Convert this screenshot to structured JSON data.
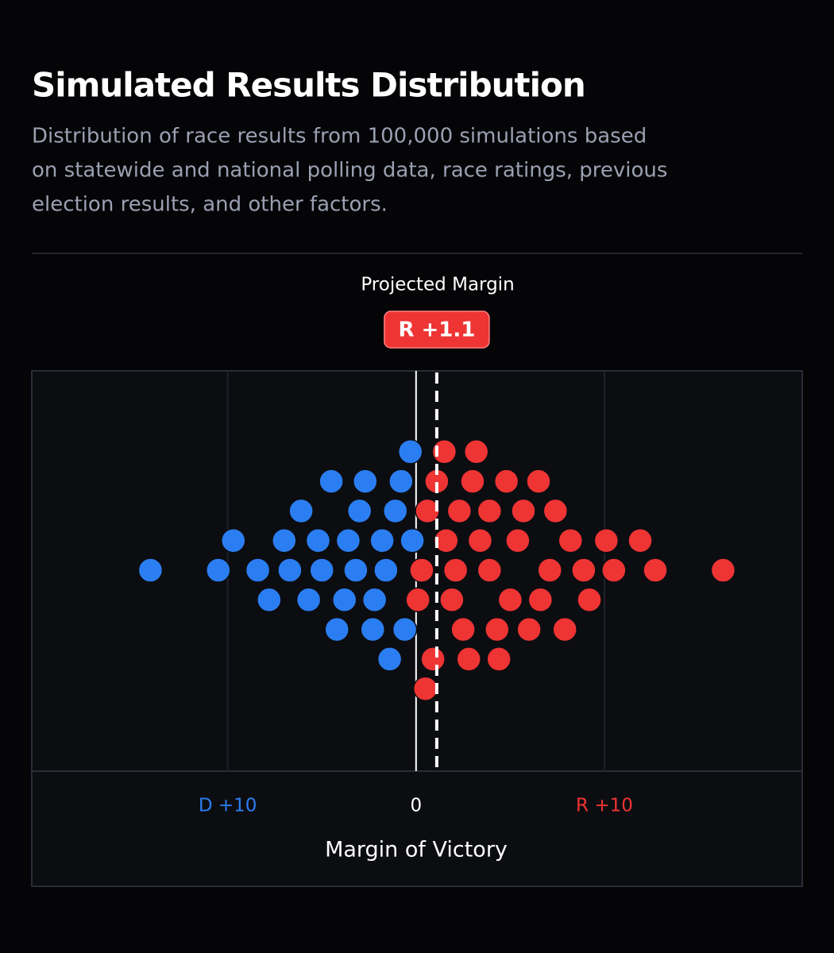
{
  "chart_data": {
    "type": "beeswarm",
    "title": "Simulated Results Distribution",
    "subtitle": [
      "Distribution of race results from 100,000 simulations based",
      "on statewide and national polling data, race ratings, previous",
      "election results, and other factors."
    ],
    "projected_title": "Projected Margin",
    "projected": {
      "value": 1.1,
      "label": "R +1.1"
    },
    "x_label": "Margin of Victory",
    "x": [
      -14.1,
      -10.5,
      -8.4,
      -6.7,
      -5.0,
      -3.2,
      -1.6,
      0.3,
      2.1,
      3.9,
      5.4,
      7.1,
      8.9,
      10.5,
      12.7,
      16.3,
      -9.7,
      -7.0,
      -5.2,
      -3.6,
      -1.8,
      -0.2,
      1.6,
      3.4,
      5.0,
      6.6,
      8.2,
      10.1,
      11.9,
      -7.8,
      -5.7,
      -3.8,
      -2.2,
      0.1,
      1.9,
      3.9,
      5.7,
      7.4,
      9.2,
      -6.1,
      -3.0,
      -1.1,
      0.6,
      2.5,
      4.3,
      6.0,
      7.9,
      -4.2,
      -2.3,
      -0.6,
      1.1,
      3.0,
      4.8,
      6.5,
      -4.5,
      -2.7,
      -0.8,
      0.9,
      2.8,
      4.4,
      -0.3,
      1.5,
      3.2,
      -1.4,
      0.5,
      2.3
    ],
    "xlim": [
      -20.4,
      20.5
    ],
    "xticks": [
      {
        "value": -10,
        "label": "D +10"
      },
      0,
      {
        "value": 10,
        "label": "R +10"
      }
    ],
    "negative_color": "#2b7ef2",
    "positive_color": "#ef3434",
    "grid": true
  }
}
